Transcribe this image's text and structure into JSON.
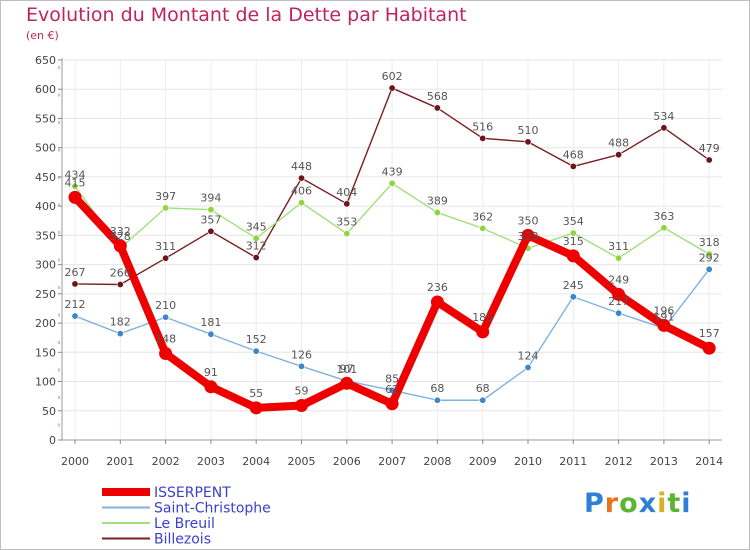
{
  "title": "Evolution du Montant de la Dette par Habitant",
  "unit": "(en €)",
  "logo": {
    "text": "Proxiti",
    "letter_colors": [
      "#2f7fd6",
      "#e8731b",
      "#5cb531",
      "#2f7fd6",
      "#d8b21f",
      "#5cb531",
      "#2f7fd6"
    ]
  },
  "chart_data": {
    "type": "line",
    "title": "Evolution du Montant de la Dette par Habitant",
    "subtitle": "(en €)",
    "x": [
      "2000",
      "2001",
      "2002",
      "2003",
      "2004",
      "2005",
      "2006",
      "2007",
      "2008",
      "2009",
      "2010",
      "2011",
      "2012",
      "2013",
      "2014"
    ],
    "ylim": [
      0,
      650
    ],
    "yticks": [
      0,
      50,
      100,
      150,
      200,
      250,
      300,
      350,
      400,
      450,
      500,
      550,
      600,
      650
    ],
    "grid": true,
    "legend_position": "bottom-left",
    "series": [
      {
        "name": "Billezois",
        "color": "#7a1f22",
        "marker": "#6b1518",
        "values": [
          267,
          266,
          311,
          357,
          312,
          448,
          404,
          602,
          568,
          516,
          510,
          468,
          488,
          534,
          479
        ]
      },
      {
        "name": "Le Breuil",
        "color": "#9fe07f",
        "marker": "#8fd63c",
        "values": [
          434,
          328,
          397,
          394,
          345,
          406,
          353,
          439,
          389,
          362,
          328,
          354,
          311,
          363,
          318
        ]
      },
      {
        "name": "Saint-Christophe",
        "color": "#7fb2e0",
        "marker": "#3f86c9",
        "values": [
          212,
          182,
          210,
          181,
          152,
          126,
          101,
          85,
          68,
          68,
          124,
          245,
          217,
          191,
          292
        ]
      },
      {
        "name": "ISSERPENT",
        "color": "#ee0000",
        "marker": "#ee0000",
        "values": [
          415,
          332,
          148,
          91,
          55,
          59,
          97,
          62,
          236,
          185,
          350,
          315,
          249,
          196,
          157
        ]
      }
    ]
  }
}
